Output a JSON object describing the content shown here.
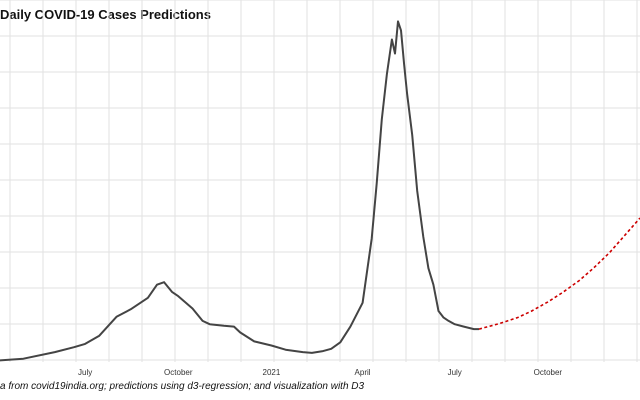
{
  "title": "Daily COVID-19 Cases Predictions",
  "caption": "a from covid19india.org; predictions using d3-regression; and visualization with D3",
  "chart_data": {
    "type": "line",
    "title": "Daily COVID-19 Cases Predictions",
    "xlabel": "",
    "ylabel": "",
    "grid": true,
    "x_domain": [
      "2020-04-01",
      "2021-12-31"
    ],
    "y_range": [
      0,
      440000
    ],
    "x_ticks": [
      {
        "date": "2020-07-01",
        "label": "July"
      },
      {
        "date": "2020-10-01",
        "label": "October"
      },
      {
        "date": "2021-01-01",
        "label": "2021"
      },
      {
        "date": "2021-04-01",
        "label": "April"
      },
      {
        "date": "2021-07-01",
        "label": "July"
      },
      {
        "date": "2021-10-01",
        "label": "October"
      }
    ],
    "series": [
      {
        "kind": "actual",
        "color": "#444444",
        "style": "solid",
        "points": [
          [
            "2020-04-01",
            1500
          ],
          [
            "2020-05-01",
            4000
          ],
          [
            "2020-06-01",
            12000
          ],
          [
            "2020-06-20",
            18000
          ],
          [
            "2020-07-01",
            22000
          ],
          [
            "2020-07-15",
            32000
          ],
          [
            "2020-08-01",
            55000
          ],
          [
            "2020-08-15",
            64000
          ],
          [
            "2020-09-01",
            78000
          ],
          [
            "2020-09-10",
            94000
          ],
          [
            "2020-09-17",
            97000
          ],
          [
            "2020-09-25",
            85000
          ],
          [
            "2020-10-01",
            80000
          ],
          [
            "2020-10-15",
            65000
          ],
          [
            "2020-10-25",
            50000
          ],
          [
            "2020-11-01",
            46000
          ],
          [
            "2020-11-15",
            44000
          ],
          [
            "2020-11-25",
            43000
          ],
          [
            "2020-12-01",
            36000
          ],
          [
            "2020-12-15",
            25000
          ],
          [
            "2021-01-01",
            20000
          ],
          [
            "2021-01-15",
            15000
          ],
          [
            "2021-02-01",
            12000
          ],
          [
            "2021-02-10",
            11000
          ],
          [
            "2021-02-20",
            13000
          ],
          [
            "2021-03-01",
            16000
          ],
          [
            "2021-03-10",
            24000
          ],
          [
            "2021-03-20",
            43000
          ],
          [
            "2021-04-01",
            72000
          ],
          [
            "2021-04-10",
            150000
          ],
          [
            "2021-04-15",
            217000
          ],
          [
            "2021-04-20",
            295000
          ],
          [
            "2021-04-25",
            350000
          ],
          [
            "2021-04-30",
            392000
          ],
          [
            "2021-05-03",
            375000
          ],
          [
            "2021-05-06",
            414000
          ],
          [
            "2021-05-09",
            403000
          ],
          [
            "2021-05-12",
            362000
          ],
          [
            "2021-05-15",
            326000
          ],
          [
            "2021-05-20",
            276000
          ],
          [
            "2021-05-25",
            208000
          ],
          [
            "2021-05-31",
            152000
          ],
          [
            "2021-06-05",
            114000
          ],
          [
            "2021-06-10",
            94000
          ],
          [
            "2021-06-15",
            62000
          ],
          [
            "2021-06-20",
            54000
          ],
          [
            "2021-06-25",
            50000
          ],
          [
            "2021-07-01",
            46000
          ],
          [
            "2021-07-10",
            43000
          ],
          [
            "2021-07-20",
            40000
          ],
          [
            "2021-07-25",
            40000
          ]
        ]
      },
      {
        "kind": "prediction",
        "color": "#cc0000",
        "style": "dotted",
        "points": [
          [
            "2021-07-25",
            40000
          ],
          [
            "2021-08-15",
            47000
          ],
          [
            "2021-09-01",
            54000
          ],
          [
            "2021-09-15",
            62000
          ],
          [
            "2021-10-01",
            73000
          ],
          [
            "2021-10-15",
            84000
          ],
          [
            "2021-11-01",
            99000
          ],
          [
            "2021-11-15",
            114000
          ],
          [
            "2021-12-01",
            133000
          ],
          [
            "2021-12-31",
            175000
          ]
        ]
      }
    ]
  }
}
